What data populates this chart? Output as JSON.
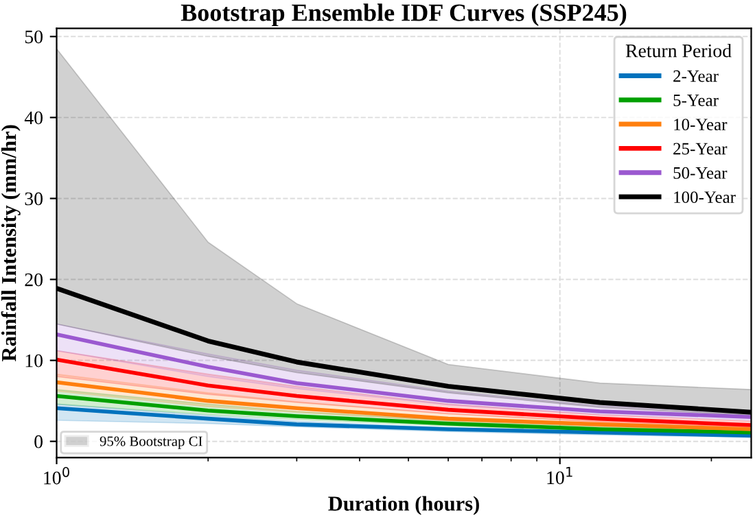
{
  "chart_data": {
    "type": "line",
    "title": "Bootstrap Ensemble IDF Curves (SSP245)",
    "xlabel": "Duration (hours)",
    "ylabel": "Rainfall Intensity (mm/hr)",
    "legend_title": "Return Period",
    "x": [
      1,
      2,
      3,
      6,
      12,
      24
    ],
    "series": [
      {
        "name": "2-Year",
        "color": "#0072bd",
        "values": [
          4.1,
          2.8,
          2.1,
          1.5,
          1.1,
          0.7
        ],
        "lower": [
          2.6,
          2.2,
          1.8,
          1.2,
          0.8,
          0.5
        ],
        "upper": [
          4.6,
          3.2,
          2.5,
          1.7,
          1.2,
          0.9
        ]
      },
      {
        "name": "5-Year",
        "color": "#00a000",
        "values": [
          5.6,
          3.8,
          3.1,
          2.2,
          1.5,
          1.1
        ],
        "lower": [
          4.6,
          3.3,
          2.7,
          1.9,
          1.3,
          0.9
        ],
        "upper": [
          6.4,
          4.6,
          3.7,
          2.6,
          1.8,
          1.3
        ]
      },
      {
        "name": "10-Year",
        "color": "#ff7f0e",
        "values": [
          7.3,
          5.0,
          4.1,
          2.8,
          2.1,
          1.5
        ],
        "lower": [
          6.2,
          4.3,
          3.6,
          2.5,
          1.8,
          1.3
        ],
        "upper": [
          8.3,
          6.0,
          4.9,
          3.4,
          2.5,
          1.8
        ]
      },
      {
        "name": "25-Year",
        "color": "#ff0000",
        "values": [
          10.1,
          6.9,
          5.6,
          3.9,
          2.8,
          2.0
        ],
        "lower": [
          8.0,
          5.8,
          4.8,
          3.4,
          2.4,
          1.7
        ],
        "upper": [
          11.2,
          8.3,
          6.8,
          4.6,
          3.3,
          2.5
        ]
      },
      {
        "name": "50-Year",
        "color": "#9b59d0",
        "values": [
          13.2,
          9.2,
          7.2,
          5.0,
          3.7,
          3.0
        ],
        "lower": [
          11.2,
          8.0,
          6.5,
          4.5,
          3.3,
          2.6
        ],
        "upper": [
          14.5,
          10.8,
          8.8,
          6.2,
          4.4,
          3.8
        ]
      },
      {
        "name": "100-Year",
        "color": "#000000",
        "values": [
          18.9,
          12.4,
          9.8,
          6.8,
          4.8,
          3.6
        ],
        "lower": [
          14.5,
          10.5,
          8.5,
          6.0,
          4.2,
          3.2
        ],
        "upper": [
          48.5,
          24.6,
          17.0,
          9.5,
          7.2,
          6.4
        ]
      }
    ],
    "annotations": [
      "95% Bootstrap CI"
    ],
    "log": "x",
    "xlim": [
      1,
      24
    ],
    "xticks": [
      {
        "value": 1,
        "label": "10$^{0}$"
      },
      {
        "value": 10,
        "label": "10$^{1}$"
      }
    ],
    "ylim": [
      -2,
      51
    ],
    "yticks": [
      0,
      10,
      20,
      30,
      40,
      50
    ],
    "grid": true,
    "legend": "top right",
    "marker": "none",
    "line_style": "solid"
  }
}
